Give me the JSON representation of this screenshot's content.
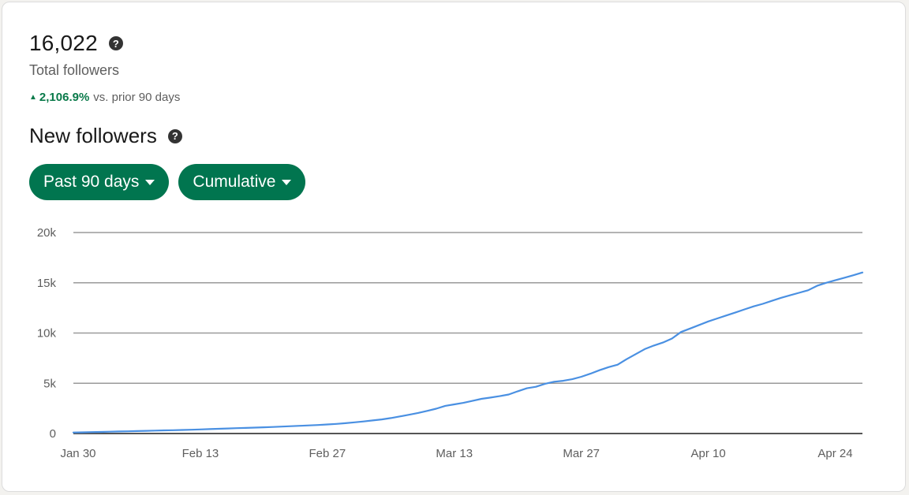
{
  "summary": {
    "total_value": "16,022",
    "total_label": "Total followers",
    "change_value": "2,106.9%",
    "change_suffix": "vs. prior 90 days",
    "change_direction": "up",
    "change_color": "#0a7a4a"
  },
  "section": {
    "title": "New followers"
  },
  "filters": {
    "range_label": "Past 90 days",
    "mode_label": "Cumulative",
    "pill_color": "#01754f"
  },
  "icons": {
    "help": "question-circle-icon",
    "caret": "caret-down-icon",
    "up": "triangle-up-icon"
  },
  "chart_data": {
    "type": "line",
    "title": "",
    "xlabel": "",
    "ylabel": "",
    "ylim": [
      0,
      20000
    ],
    "y_ticks": [
      {
        "value": 0,
        "label": "0"
      },
      {
        "value": 5000,
        "label": "5k"
      },
      {
        "value": 10000,
        "label": "10k"
      },
      {
        "value": 15000,
        "label": "15k"
      },
      {
        "value": 20000,
        "label": "20k"
      }
    ],
    "x_tick_labels": [
      "Jan 30",
      "Feb 13",
      "Feb 27",
      "Mar 13",
      "Mar 27",
      "Apr 10",
      "Apr 24"
    ],
    "x_start": "Jan 30",
    "x_end": "Apr 29",
    "grid": true,
    "line_color": "#4a90e2",
    "series": [
      {
        "values": [
          100,
          120,
          140,
          160,
          180,
          200,
          220,
          240,
          270,
          290,
          310,
          330,
          350,
          380,
          410,
          440,
          470,
          500,
          530,
          560,
          590,
          620,
          650,
          690,
          730,
          770,
          810,
          850,
          900,
          960,
          1030,
          1110,
          1200,
          1300,
          1400,
          1540,
          1700,
          1870,
          2050,
          2250,
          2470,
          2750,
          2900,
          3050,
          3250,
          3450,
          3580,
          3720,
          3880,
          4200,
          4500,
          4650,
          4950,
          5150,
          5250,
          5400,
          5650,
          5950,
          6300,
          6600,
          6850,
          7400,
          7900,
          8400,
          8750,
          9050,
          9450,
          10100,
          10450,
          10800,
          11150,
          11450,
          11750,
          12050,
          12350,
          12650,
          12900,
          13200,
          13500,
          13750,
          14000,
          14250,
          14700,
          15000,
          15250,
          15500,
          15750,
          16022
        ]
      }
    ]
  }
}
